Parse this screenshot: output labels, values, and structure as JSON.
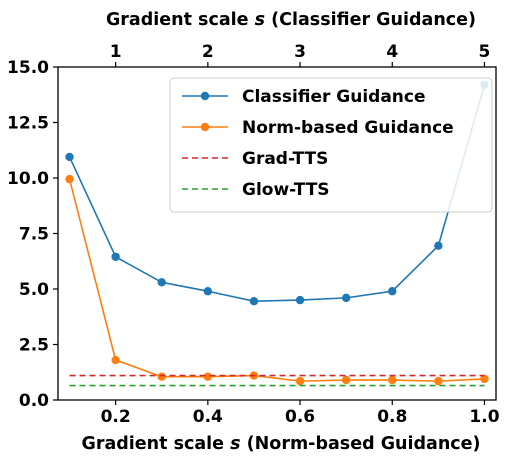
{
  "chart_data": {
    "type": "line",
    "title": "",
    "xlabel": "Gradient scale s (Norm-based Guidance)",
    "xlabel_parts": [
      "Gradient scale ",
      "s",
      " (Norm-based Guidance)"
    ],
    "x2label": "Gradient scale s (Classifier Guidance)",
    "x2label_parts": [
      "Gradient scale ",
      "s",
      " (Classifier Guidance)"
    ],
    "ylabel": "",
    "xlim": [
      0.075,
      1.025
    ],
    "ylim": [
      0.0,
      15.0
    ],
    "x2lim": [
      0.375,
      5.125
    ],
    "x_ticks": [
      0.2,
      0.4,
      0.6,
      0.8,
      1.0
    ],
    "x_tick_labels": [
      "0.2",
      "0.4",
      "0.6",
      "0.8",
      "1.0"
    ],
    "x2_ticks": [
      1,
      2,
      3,
      4,
      5
    ],
    "x2_tick_labels": [
      "1",
      "2",
      "3",
      "4",
      "5"
    ],
    "y_ticks": [
      0.0,
      2.5,
      5.0,
      7.5,
      10.0,
      12.5,
      15.0
    ],
    "y_tick_labels": [
      "0.0",
      "2.5",
      "5.0",
      "7.5",
      "10.0",
      "12.5",
      "15.0"
    ],
    "grid": false,
    "legend_position": "top-right",
    "x": [
      0.1,
      0.2,
      0.3,
      0.4,
      0.5,
      0.6,
      0.7,
      0.8,
      0.9,
      1.0
    ],
    "series": [
      {
        "name": "Classifier Guidance",
        "style": "line-marker",
        "color": "#1f77b4",
        "values": [
          10.95,
          6.45,
          5.3,
          4.9,
          4.45,
          4.5,
          4.6,
          4.9,
          6.95,
          14.2
        ]
      },
      {
        "name": "Norm-based Guidance",
        "style": "line-marker",
        "color": "#ff7f0e",
        "values": [
          9.95,
          1.8,
          1.05,
          1.05,
          1.1,
          0.85,
          0.9,
          0.9,
          0.85,
          0.95
        ]
      },
      {
        "name": "Grad-TTS",
        "style": "dashed",
        "color": "#d62728",
        "values": [
          1.1,
          1.1,
          1.1,
          1.1,
          1.1,
          1.1,
          1.1,
          1.1,
          1.1,
          1.1
        ]
      },
      {
        "name": "Glow-TTS",
        "style": "dashed",
        "color": "#2ca02c",
        "values": [
          0.65,
          0.65,
          0.65,
          0.65,
          0.65,
          0.65,
          0.65,
          0.65,
          0.65,
          0.65
        ]
      }
    ]
  }
}
